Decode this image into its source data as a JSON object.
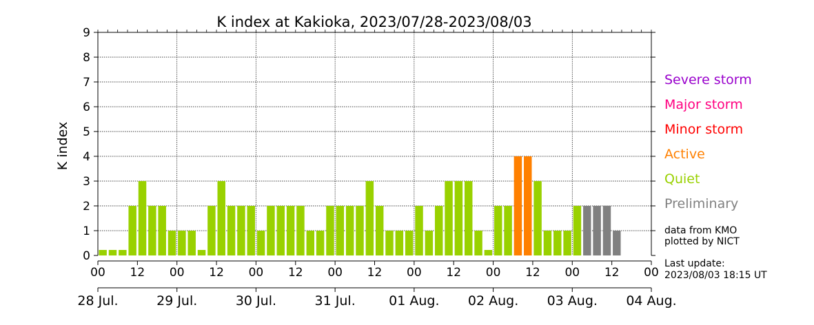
{
  "chart_data": {
    "type": "bar",
    "title": "K index at Kakioka, 2023/07/28-2023/08/03",
    "ylabel": "K index",
    "ylim": [
      0,
      9
    ],
    "yticks": [
      0,
      1,
      2,
      3,
      4,
      5,
      6,
      7,
      8,
      9
    ],
    "x_tick_labels": [
      "00",
      "12",
      "00",
      "12",
      "00",
      "12",
      "00",
      "12",
      "00",
      "12",
      "00",
      "12",
      "00",
      "12",
      "00"
    ],
    "date_labels": [
      "28 Jul.",
      "29 Jul.",
      "30 Jul.",
      "31 Jul.",
      "01 Aug.",
      "02 Aug.",
      "03 Aug.",
      "04 Aug."
    ],
    "grid": true,
    "interval_hours": 3,
    "series": [
      {
        "values": [
          0,
          0,
          0,
          2,
          3,
          2,
          2,
          1,
          1,
          1,
          0,
          2,
          3,
          2,
          2,
          2,
          1,
          2,
          2,
          2,
          2,
          1,
          1,
          2,
          2,
          2,
          2,
          3,
          2,
          1,
          1,
          1,
          2,
          1,
          2,
          3,
          3,
          3,
          1,
          0,
          2,
          2,
          4,
          4,
          3,
          1,
          1,
          1,
          2,
          2,
          2,
          2,
          1
        ],
        "status": [
          "q",
          "q",
          "q",
          "q",
          "q",
          "q",
          "q",
          "q",
          "q",
          "q",
          "q",
          "q",
          "q",
          "q",
          "q",
          "q",
          "q",
          "q",
          "q",
          "q",
          "q",
          "q",
          "q",
          "q",
          "q",
          "q",
          "q",
          "q",
          "q",
          "q",
          "q",
          "q",
          "q",
          "q",
          "q",
          "q",
          "q",
          "q",
          "q",
          "q",
          "q",
          "q",
          "a",
          "a",
          "q",
          "q",
          "q",
          "q",
          "q",
          "p",
          "p",
          "p",
          "p"
        ]
      }
    ],
    "colors": {
      "q": "#99d100",
      "a": "#ff8000",
      "p": "#808080"
    }
  },
  "legend": [
    {
      "label": "Severe storm",
      "color": "#9900cc"
    },
    {
      "label": "Major storm",
      "color": "#ff0080"
    },
    {
      "label": "Minor storm",
      "color": "#ff0000"
    },
    {
      "label": "Active",
      "color": "#ff8000"
    },
    {
      "label": "Quiet",
      "color": "#99d100"
    },
    {
      "label": "Preliminary",
      "color": "#808080"
    }
  ],
  "notes": {
    "source_line1": "data from KMO",
    "source_line2": "plotted by NICT",
    "update_label": "Last update:",
    "update_time": "2023/08/03 18:15 UT"
  }
}
